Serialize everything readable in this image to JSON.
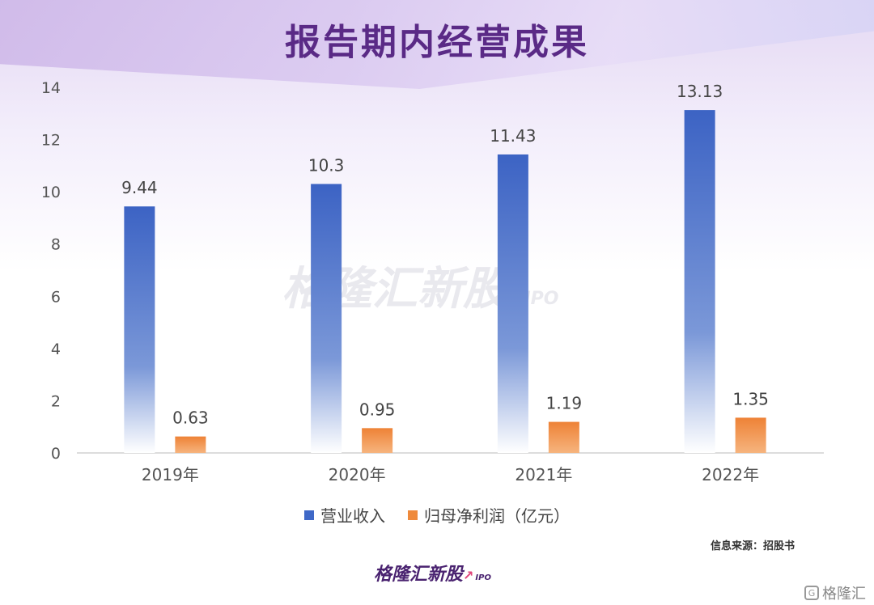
{
  "title": "报告期内经营成果",
  "watermark": {
    "text": "格隆汇新股",
    "sub": "IPO"
  },
  "chart_data": {
    "type": "bar",
    "categories": [
      "2019年",
      "2020年",
      "2021年",
      "2022年"
    ],
    "series": [
      {
        "name": "营业收入",
        "values": [
          9.44,
          10.3,
          11.43,
          13.13
        ],
        "labels": [
          "9.44",
          "10.3",
          "11.43",
          "13.13"
        ],
        "color": "#3f68c7"
      },
      {
        "name": "归母净利润",
        "values": [
          0.63,
          0.95,
          1.19,
          1.35
        ],
        "labels": [
          "0.63",
          "0.95",
          "1.19",
          "1.35"
        ],
        "color": "#ef8a3c"
      }
    ],
    "ylim": [
      0,
      14
    ],
    "yticks": [
      "0",
      "2",
      "4",
      "6",
      "8",
      "10",
      "12",
      "14"
    ],
    "unit": "（亿元）",
    "grid": false,
    "legend_position": "bottom"
  },
  "source": "信息来源：招股书",
  "brand": {
    "text": "格隆汇新股",
    "sub": "IPO"
  },
  "corner_mark": "格隆汇"
}
